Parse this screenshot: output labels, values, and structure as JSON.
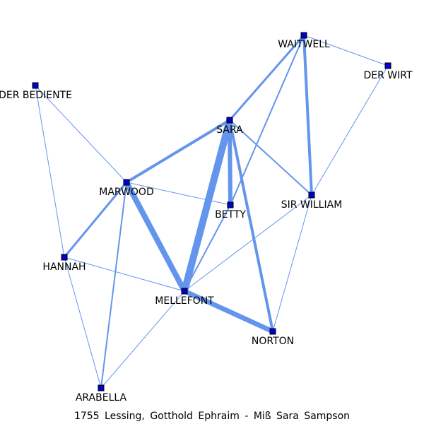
{
  "caption": "1755  Lessing,  Gotthold  Ephraim  -  Miß  Sara  Sampson",
  "colors": {
    "edge": "#6495ed",
    "node_fill": "#0000cd",
    "node_stroke": "#000000",
    "label": "#000000"
  },
  "nodes": [
    {
      "id": "waitwell",
      "label": "WAITWELL"
    },
    {
      "id": "der-wirt",
      "label": "DER WIRT"
    },
    {
      "id": "der-bediente",
      "label": "DER BEDIENTE"
    },
    {
      "id": "sara",
      "label": "SARA"
    },
    {
      "id": "marwood",
      "label": "MARWOOD"
    },
    {
      "id": "betty",
      "label": "BETTY"
    },
    {
      "id": "sir-william",
      "label": "SIR WILLIAM"
    },
    {
      "id": "hannah",
      "label": "HANNAH"
    },
    {
      "id": "mellefont",
      "label": "MELLEFONT"
    },
    {
      "id": "norton",
      "label": "NORTON"
    },
    {
      "id": "arabella",
      "label": "ARABELLA"
    }
  ],
  "edges": [
    {
      "source": "waitwell",
      "target": "der-wirt",
      "weight": 1
    },
    {
      "source": "waitwell",
      "target": "sara",
      "weight": 3
    },
    {
      "source": "waitwell",
      "target": "betty",
      "weight": 2
    },
    {
      "source": "waitwell",
      "target": "sir-william",
      "weight": 4
    },
    {
      "source": "der-wirt",
      "target": "sir-william",
      "weight": 1
    },
    {
      "source": "der-bediente",
      "target": "marwood",
      "weight": 1
    },
    {
      "source": "der-bediente",
      "target": "hannah",
      "weight": 1
    },
    {
      "source": "sara",
      "target": "marwood",
      "weight": 4
    },
    {
      "source": "sara",
      "target": "betty",
      "weight": 6
    },
    {
      "source": "sara",
      "target": "sir-william",
      "weight": 2
    },
    {
      "source": "sara",
      "target": "mellefont",
      "weight": 10
    },
    {
      "source": "sara",
      "target": "norton",
      "weight": 4
    },
    {
      "source": "marwood",
      "target": "betty",
      "weight": 1
    },
    {
      "source": "marwood",
      "target": "hannah",
      "weight": 3
    },
    {
      "source": "marwood",
      "target": "mellefont",
      "weight": 8
    },
    {
      "source": "marwood",
      "target": "arabella",
      "weight": 2
    },
    {
      "source": "betty",
      "target": "mellefont",
      "weight": 2
    },
    {
      "source": "sir-william",
      "target": "mellefont",
      "weight": 1
    },
    {
      "source": "sir-william",
      "target": "norton",
      "weight": 1
    },
    {
      "source": "hannah",
      "target": "mellefont",
      "weight": 1
    },
    {
      "source": "hannah",
      "target": "arabella",
      "weight": 1
    },
    {
      "source": "mellefont",
      "target": "norton",
      "weight": 7
    },
    {
      "source": "mellefont",
      "target": "arabella",
      "weight": 1
    }
  ]
}
